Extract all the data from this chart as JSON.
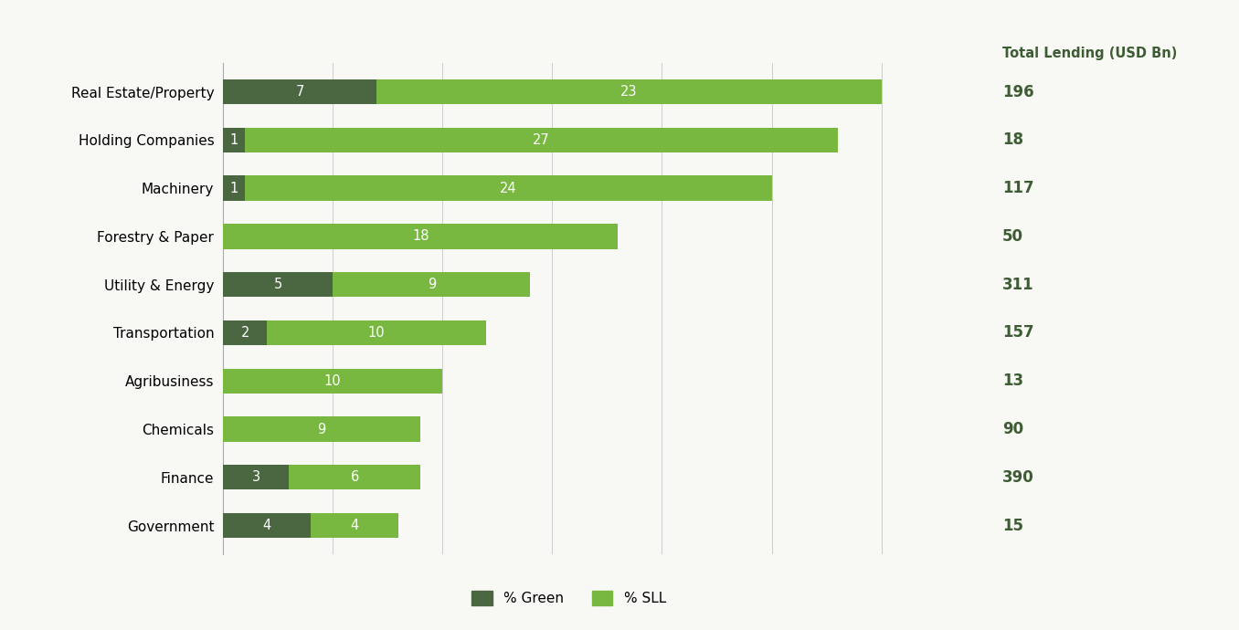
{
  "categories": [
    "Real Estate/Property",
    "Holding Companies",
    "Machinery",
    "Forestry & Paper",
    "Utility & Energy",
    "Transportation",
    "Agribusiness",
    "Chemicals",
    "Finance",
    "Government"
  ],
  "green_values": [
    7,
    1,
    1,
    0,
    5,
    2,
    0,
    0,
    3,
    4
  ],
  "sll_values": [
    23,
    27,
    24,
    18,
    9,
    10,
    10,
    9,
    6,
    4
  ],
  "total_lending": [
    196,
    18,
    117,
    50,
    311,
    157,
    13,
    90,
    390,
    15
  ],
  "green_color": "#4a6741",
  "sll_color": "#78b840",
  "background_color": "#f5f5f0",
  "title": "Total Lending (USD Bn)",
  "legend_green": "% Green",
  "legend_sll": "% SLL",
  "bar_height": 0.52,
  "xlim": [
    0,
    35
  ],
  "label_fontsize": 10.5,
  "tick_fontsize": 11,
  "total_fontsize": 12,
  "title_fontsize": 10.5
}
